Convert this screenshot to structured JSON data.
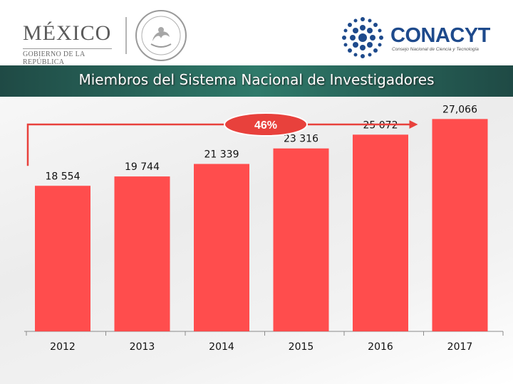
{
  "header": {
    "mexico_word": "MÉXICO",
    "mexico_sub": "GOBIERNO DE LA REPÚBLICA",
    "conacyt_word": "CONACYT",
    "conacyt_sub": "Consejo Nacional de Ciencia y Tecnología"
  },
  "title": "Miembros del Sistema Nacional de Investigadores",
  "colors": {
    "bar": "#ff4d4d",
    "arrow": "#e8413c",
    "badge": "#e8413c",
    "title_band": "#2f7a6a",
    "conacyt_blue": "#1e4a8c"
  },
  "chart_data": {
    "type": "bar",
    "title": "Miembros del Sistema Nacional de Investigadores",
    "categories": [
      "2012",
      "2013",
      "2014",
      "2015",
      "2016",
      "2017"
    ],
    "values": [
      18554,
      19744,
      21339,
      23316,
      25072,
      27066
    ],
    "value_labels": [
      "18 554",
      "19 744",
      "21 339",
      "23 316",
      "25 072",
      "27,066"
    ],
    "growth_label": "46%",
    "xlabel": "",
    "ylabel": "",
    "ylim": [
      0,
      29000
    ],
    "grid": false,
    "legend": "none"
  }
}
